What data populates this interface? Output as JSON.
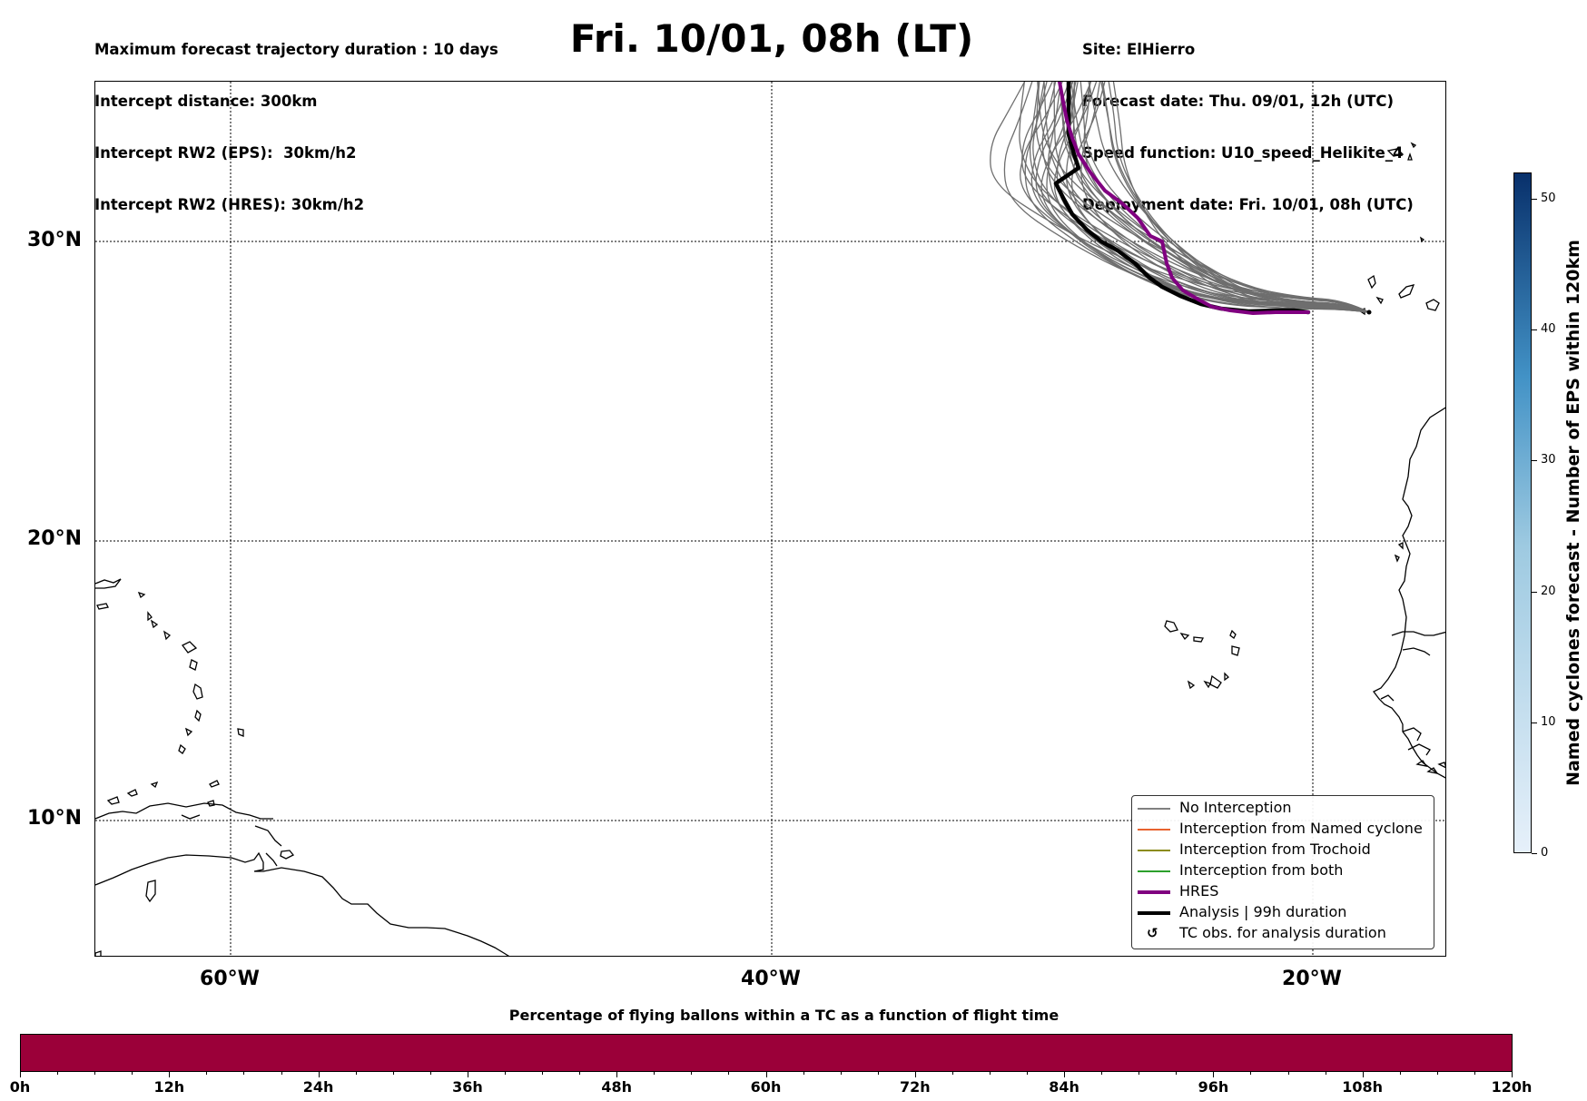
{
  "header": {
    "left_lines": [
      "Maximum forecast trajectory duration : 10 days",
      "Intercept distance: 300km",
      "Intercept RW2 (EPS):  30km/h2",
      "Intercept RW2 (HRES): 30km/h2"
    ],
    "title": "Fri. 10/01, 08h (LT)",
    "right_lines": [
      "Site: ElHierro",
      "Forecast date: Thu. 09/01, 12h (UTC)",
      "Speed function: U10_speed_Helikite_4",
      "Deployment date: Fri. 10/01, 08h (UTC)"
    ]
  },
  "map": {
    "lat_labels": [
      "30°N",
      "20°N",
      "10°N"
    ],
    "lon_labels": [
      "60°W",
      "40°W",
      "20°W"
    ],
    "site": {
      "name": "ElHierro",
      "lat": 27.7,
      "lon": -18.0
    }
  },
  "legend": {
    "items": [
      {
        "label": "No Interception",
        "color": "#808080",
        "style": "thin"
      },
      {
        "label": "Interception from Named cyclone",
        "color": "#e8622f",
        "style": "thin"
      },
      {
        "label": "Interception from Trochoid",
        "color": "#8b8b1a",
        "style": "thin"
      },
      {
        "label": "Interception from both",
        "color": "#2ca02c",
        "style": "thin"
      },
      {
        "label": "HRES",
        "color": "#800080",
        "style": "thick"
      },
      {
        "label": "Analysis | 99h duration",
        "color": "#000000",
        "style": "thick"
      },
      {
        "label": "TC obs. for analysis duration",
        "color": "#000000",
        "style": "marker",
        "marker": "↺"
      }
    ]
  },
  "colorbar": {
    "title": "Named cyclones forecast - Number of EPS within 120km",
    "min": 0,
    "max": 52,
    "ticks": [
      "0",
      "10",
      "20",
      "30",
      "40",
      "50"
    ],
    "color_low": "#e6f0fa",
    "color_high": "#08306b"
  },
  "time_bar": {
    "title": "Percentage of flying ballons within a TC as a function of flight time",
    "color": "#9b0039",
    "labels": [
      "0h",
      "12h",
      "24h",
      "36h",
      "48h",
      "60h",
      "72h",
      "84h",
      "96h",
      "108h",
      "120h"
    ]
  }
}
